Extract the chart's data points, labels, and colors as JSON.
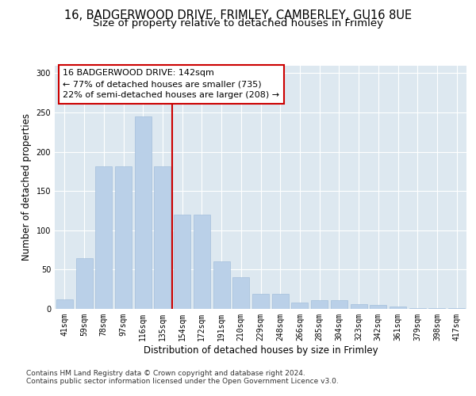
{
  "title_line1": "16, BADGERWOOD DRIVE, FRIMLEY, CAMBERLEY, GU16 8UE",
  "title_line2": "Size of property relative to detached houses in Frimley",
  "xlabel": "Distribution of detached houses by size in Frimley",
  "ylabel": "Number of detached properties",
  "categories": [
    "41sqm",
    "59sqm",
    "78sqm",
    "97sqm",
    "116sqm",
    "135sqm",
    "154sqm",
    "172sqm",
    "191sqm",
    "210sqm",
    "229sqm",
    "248sqm",
    "266sqm",
    "285sqm",
    "304sqm",
    "323sqm",
    "342sqm",
    "361sqm",
    "379sqm",
    "398sqm",
    "417sqm"
  ],
  "values": [
    12,
    65,
    181,
    181,
    245,
    181,
    120,
    120,
    60,
    40,
    19,
    19,
    8,
    11,
    11,
    6,
    5,
    3,
    1,
    1,
    1
  ],
  "bar_color": "#bad0e8",
  "bar_edge_color": "#9ab8d8",
  "vline_x": 5.5,
  "vline_color": "#cc0000",
  "annotation_text": "16 BADGERWOOD DRIVE: 142sqm\n← 77% of detached houses are smaller (735)\n22% of semi-detached houses are larger (208) →",
  "annotation_box_color": "#ffffff",
  "annotation_box_edge": "#cc0000",
  "ylim": [
    0,
    310
  ],
  "yticks": [
    0,
    50,
    100,
    150,
    200,
    250,
    300
  ],
  "background_color": "#dde8f0",
  "footer_line1": "Contains HM Land Registry data © Crown copyright and database right 2024.",
  "footer_line2": "Contains public sector information licensed under the Open Government Licence v3.0.",
  "title_fontsize": 10.5,
  "subtitle_fontsize": 9.5,
  "axis_label_fontsize": 8.5,
  "tick_fontsize": 7,
  "annotation_fontsize": 8,
  "footer_fontsize": 6.5
}
